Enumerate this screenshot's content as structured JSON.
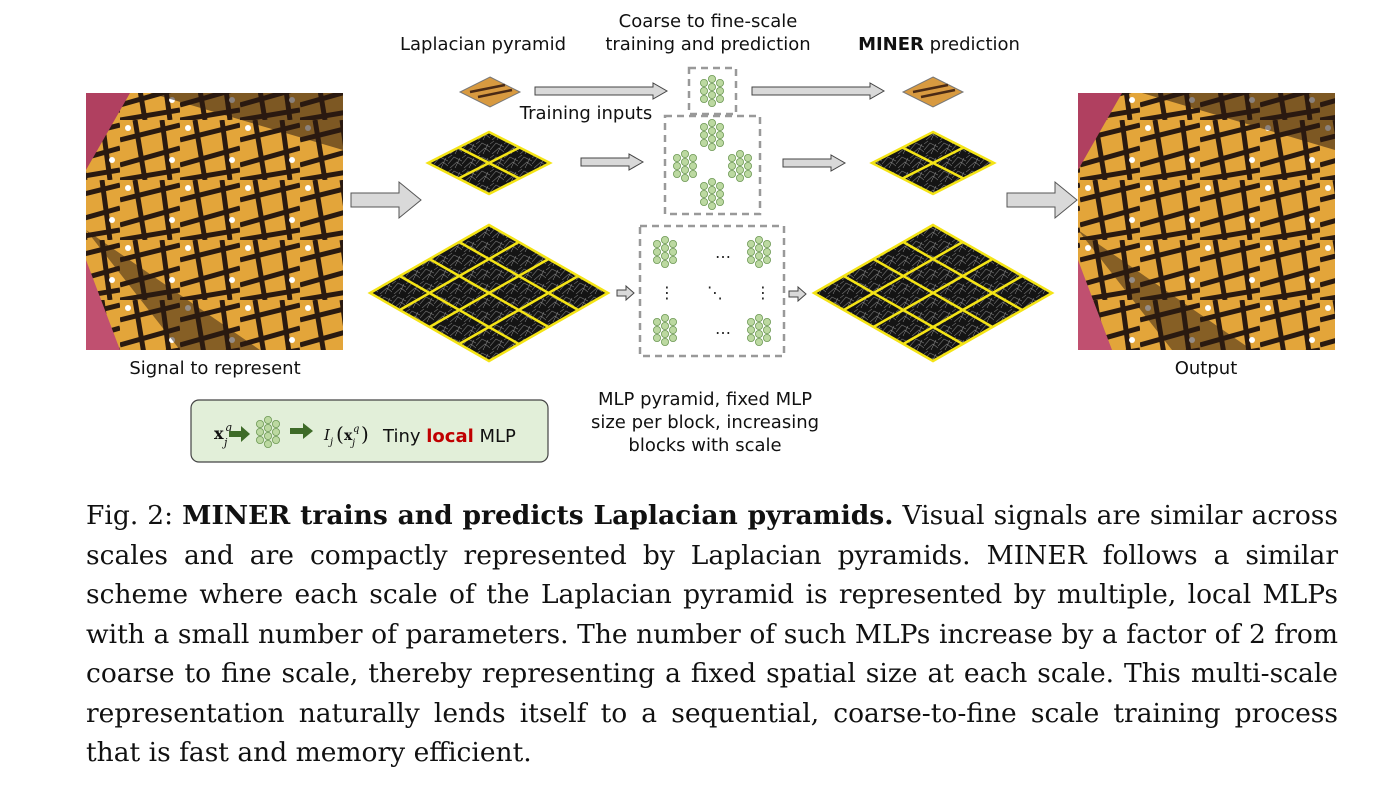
{
  "figure": {
    "labels": {
      "laplacian_pyramid": "Laplacian pyramid",
      "coarse_line1": "Coarse to fine-scale",
      "coarse_line2": "training and prediction",
      "miner_bold": "MINER",
      "miner_rest": " prediction",
      "training_inputs": "Training inputs",
      "signal_to_represent": "Signal to represent",
      "output": "Output",
      "mlp_line1": "MLP pyramid, fixed MLP",
      "mlp_line2": "size per block, increasing",
      "mlp_line3": "blocks with scale"
    },
    "legend": {
      "input": "x",
      "input_sup": "q",
      "input_sub": "j",
      "output_fn": "I",
      "output_sub": "j",
      "text_before": "Tiny ",
      "text_highlight": "local",
      "text_after": " MLP"
    },
    "colors": {
      "grid_yellow": "#f4e416",
      "mlp_node": "#bcd9a1",
      "mlp_node_stroke": "#6f9a57",
      "legend_bg": "#e2efd9",
      "legend_arrow": "#3e6b28",
      "local_red": "#c00000",
      "dashed_box": "#999999",
      "arrow_fill": "#d9d9d9"
    }
  },
  "caption": {
    "fig_label": "Fig. 2: ",
    "bold_title": "MINER trains and predicts Laplacian pyramids.",
    "body": " Visual signals are similar across scales and are compactly represented by Laplacian pyramids. MINER follows a similar scheme where each scale of the Laplacian pyramid is represented by multiple, local MLPs with a small number of parameters. The number of such MLPs increase by a factor of 2 from coarse to fine scale, thereby representing a fixed spatial size at each scale. This multi-scale representation naturally lends itself to a sequential, coarse-to-fine scale training process that is fast and memory efficient."
  }
}
